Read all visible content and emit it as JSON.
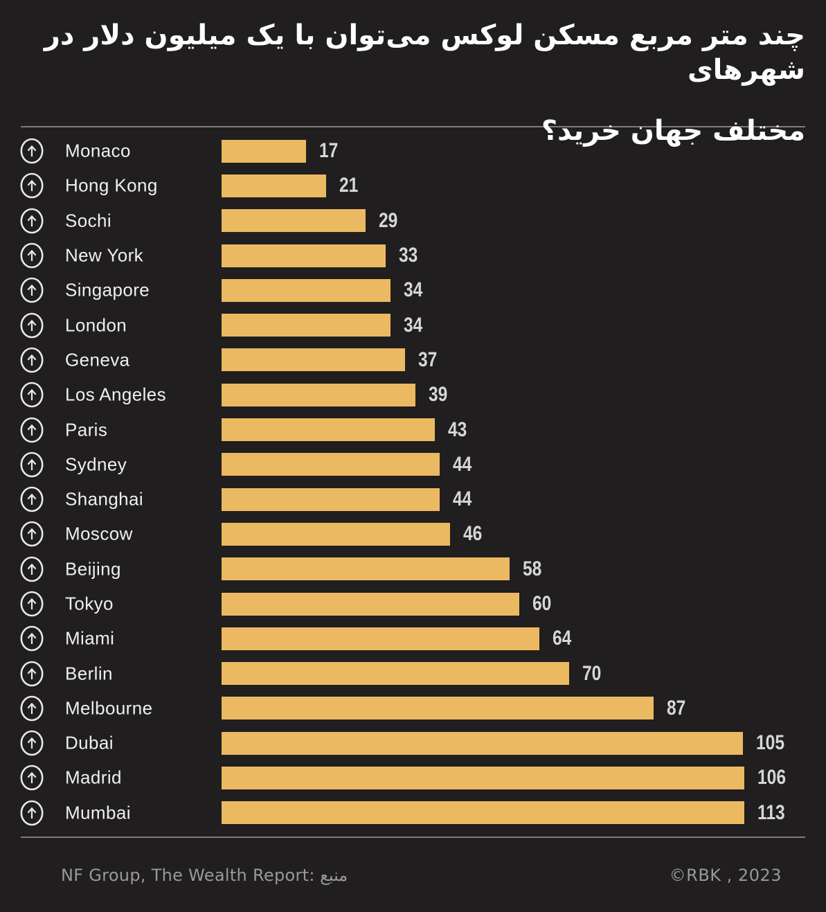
{
  "header": {
    "title_lines": [
      "چند متر مربع مسکن لوکس می‌توان با یک میلیون دلار در شهرهای",
      "مختلف جهان خرید؟"
    ]
  },
  "chart_data": {
    "type": "bar",
    "orientation": "horizontal",
    "title": "چند متر مربع مسکن لوکس می‌توان با یک میلیون دلار در شهرهای مختلف جهان خرید؟",
    "categories": [
      "Monaco",
      "Hong Kong",
      "Sochi",
      "New York",
      "Singapore",
      "London",
      "Geneva",
      "Los Angeles",
      "Paris",
      "Sydney",
      "Shanghai",
      "Moscow",
      "Beijing",
      "Tokyo",
      "Miami",
      "Berlin",
      "Melbourne",
      "Dubai",
      "Madrid",
      "Mumbai"
    ],
    "values": [
      17,
      21,
      29,
      33,
      34,
      34,
      37,
      39,
      43,
      44,
      44,
      46,
      58,
      60,
      64,
      70,
      87,
      105,
      106,
      113
    ],
    "xlim": [
      0,
      113
    ],
    "grid": false,
    "value_labels": "end-of-bar",
    "row_icon": "up-arrow-in-circle",
    "bar_color": "#ecb963"
  },
  "footer": {
    "source": "منبع :NF Group, The Wealth Report",
    "copyright": "©RBK , 2023"
  },
  "colors": {
    "background": "#201e1e",
    "bar": "#ecb963",
    "title_text": "#fdfdfd",
    "city_text": "#efefef",
    "value_text": "#d6d6d6",
    "muted_text": "#999999",
    "divider": "#7d7d7d",
    "icon_stroke": "#e9e9e9"
  }
}
